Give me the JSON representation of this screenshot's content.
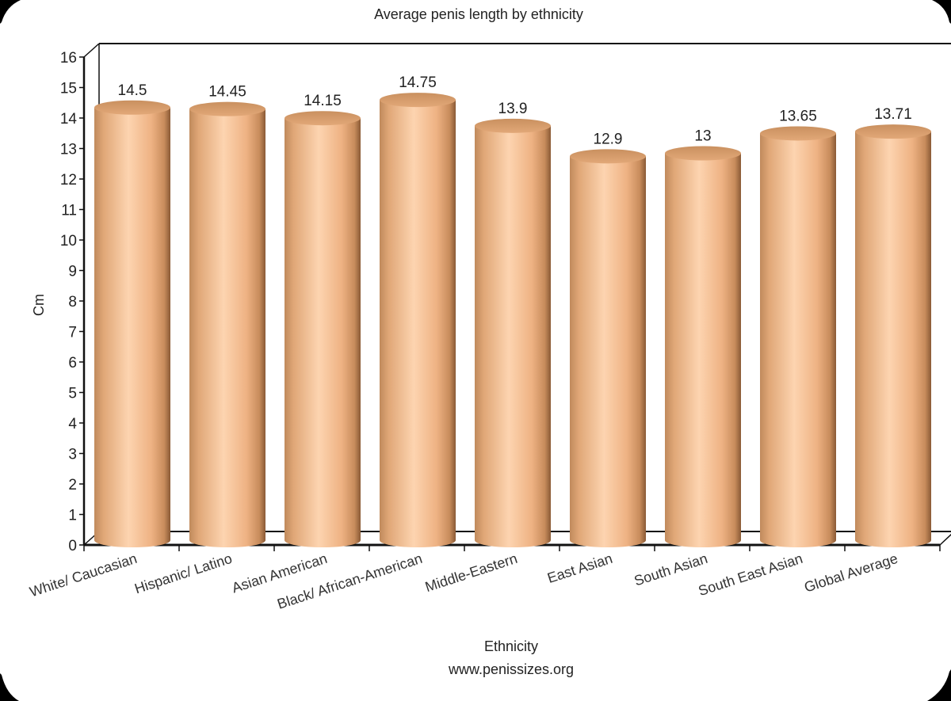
{
  "chart_data": {
    "type": "bar",
    "style": "3d-cylinder",
    "title": "Average penis length by ethnicity",
    "xlabel": "Ethnicity",
    "subtitle_source": "www.penissizes.org",
    "ylabel": "Cm",
    "ylim": [
      0,
      16
    ],
    "yticks": [
      0,
      1,
      2,
      3,
      4,
      5,
      6,
      7,
      8,
      9,
      10,
      11,
      12,
      13,
      14,
      15,
      16
    ],
    "grid": false,
    "legend": null,
    "categories": [
      "White/ Caucasian",
      "Hispanic/ Latino",
      "Asian American",
      "Black/ African-American",
      "Middle-Eastern",
      "East Asian",
      "South Asian",
      "South East Asian",
      "Global Average"
    ],
    "values": [
      14.5,
      14.45,
      14.15,
      14.75,
      13.9,
      12.9,
      13,
      13.65,
      13.71
    ],
    "value_labels": [
      "14.5",
      "14.45",
      "14.15",
      "14.75",
      "13.9",
      "12.9",
      "13",
      "13.65",
      "13.71"
    ],
    "bar_color": "#f2b98a"
  }
}
